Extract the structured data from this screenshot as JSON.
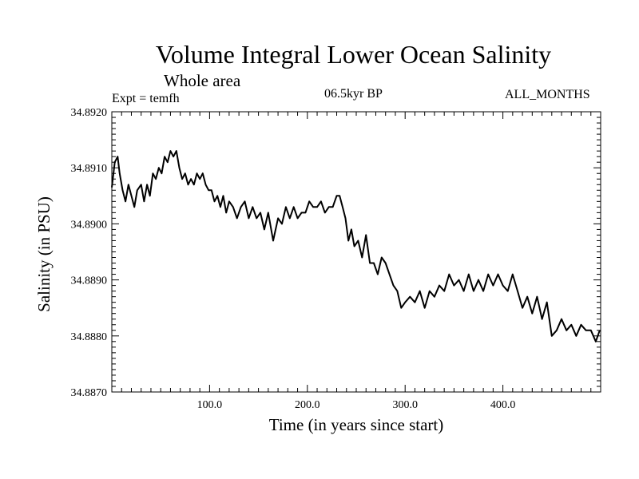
{
  "chart_data": {
    "type": "line",
    "title": "Volume Integral Lower Ocean Salinity",
    "subtitle": "Whole area",
    "experiment": "Expt = temfh",
    "period": "06.5kyr BP",
    "months": "ALL_MONTHS",
    "xlabel": "Time (in years since start)",
    "ylabel": "Salinity (in PSU)",
    "xlim": [
      0,
      500
    ],
    "ylim": [
      34.887,
      34.892
    ],
    "xticks": [
      100,
      200,
      300,
      400
    ],
    "xtick_labels": [
      "100.0",
      "200.0",
      "300.0",
      "400.0"
    ],
    "yticks": [
      34.887,
      34.888,
      34.889,
      34.89,
      34.891,
      34.892
    ],
    "ytick_labels": [
      "34.8870",
      "34.8880",
      "34.8890",
      "34.8900",
      "34.8910",
      "34.8920"
    ],
    "grid": false,
    "series": [
      {
        "name": "salinity",
        "x": [
          0,
          3,
          6,
          8,
          11,
          14,
          17,
          20,
          23,
          26,
          30,
          33,
          36,
          39,
          42,
          45,
          48,
          51,
          54,
          57,
          60,
          63,
          66,
          69,
          72,
          75,
          78,
          81,
          84,
          87,
          90,
          93,
          96,
          99,
          102,
          105,
          108,
          111,
          114,
          117,
          120,
          124,
          128,
          132,
          136,
          140,
          144,
          148,
          152,
          156,
          160,
          165,
          170,
          174,
          178,
          182,
          186,
          190,
          194,
          198,
          202,
          206,
          210,
          214,
          218,
          222,
          226,
          230,
          233,
          236,
          239,
          242,
          245,
          248,
          252,
          256,
          260,
          264,
          268,
          272,
          276,
          280,
          284,
          288,
          292,
          296,
          300,
          305,
          310,
          315,
          320,
          325,
          330,
          335,
          340,
          345,
          350,
          355,
          360,
          365,
          370,
          375,
          380,
          385,
          390,
          395,
          400,
          405,
          410,
          415,
          420,
          425,
          430,
          435,
          440,
          445,
          450,
          455,
          460,
          465,
          470,
          475,
          480,
          485,
          490,
          495,
          499
        ],
        "y": [
          34.89065,
          34.8911,
          34.8912,
          34.8909,
          34.8906,
          34.8904,
          34.8907,
          34.8905,
          34.8903,
          34.8906,
          34.8907,
          34.8904,
          34.8907,
          34.8905,
          34.8909,
          34.8908,
          34.891,
          34.8909,
          34.8912,
          34.8911,
          34.8913,
          34.8912,
          34.8913,
          34.891,
          34.8908,
          34.8909,
          34.8907,
          34.8908,
          34.8907,
          34.8909,
          34.8908,
          34.8909,
          34.8907,
          34.8906,
          34.8906,
          34.8904,
          34.8905,
          34.8903,
          34.8905,
          34.8902,
          34.8904,
          34.8903,
          34.8901,
          34.8903,
          34.8904,
          34.8901,
          34.8903,
          34.8901,
          34.8902,
          34.8899,
          34.8902,
          34.8897,
          34.8901,
          34.89,
          34.8903,
          34.8901,
          34.8903,
          34.8901,
          34.8902,
          34.8902,
          34.8904,
          34.8903,
          34.8903,
          34.8904,
          34.8902,
          34.8903,
          34.8903,
          34.8905,
          34.8905,
          34.8903,
          34.8901,
          34.8897,
          34.8899,
          34.8896,
          34.8897,
          34.8894,
          34.8898,
          34.8893,
          34.8893,
          34.8891,
          34.8894,
          34.8893,
          34.8891,
          34.8889,
          34.8888,
          34.8885,
          34.8886,
          34.8887,
          34.8886,
          34.8888,
          34.8885,
          34.8888,
          34.8887,
          34.8889,
          34.8888,
          34.8891,
          34.8889,
          34.889,
          34.8888,
          34.8891,
          34.8888,
          34.889,
          34.8888,
          34.8891,
          34.8889,
          34.8891,
          34.8889,
          34.8888,
          34.8891,
          34.8888,
          34.8885,
          34.8887,
          34.8884,
          34.8887,
          34.8883,
          34.8886,
          34.888,
          34.8881,
          34.8883,
          34.8881,
          34.8882,
          34.888,
          34.8882,
          34.8881,
          34.8881,
          34.8879,
          34.8881
        ]
      }
    ]
  }
}
